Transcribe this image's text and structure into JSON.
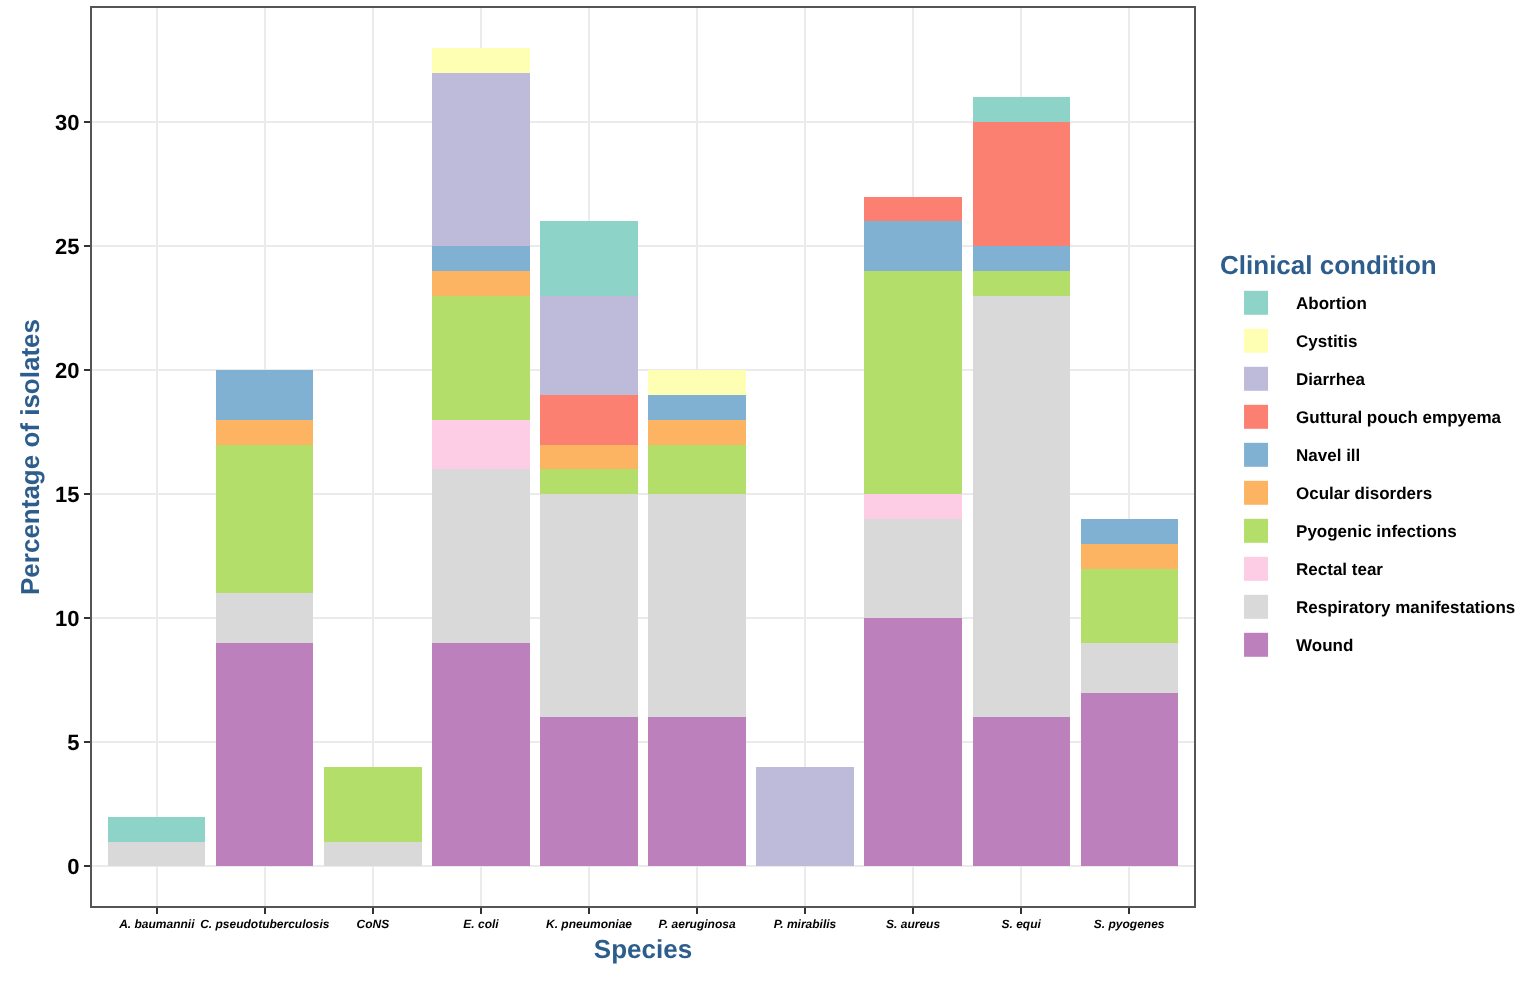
{
  "chart_data": {
    "type": "bar",
    "stacked": true,
    "xlabel": "Species",
    "ylabel": "Percentage of isolates",
    "legend_title": "Clinical condition",
    "categories": [
      "A. baumannii",
      "C. pseudotuberculosis",
      "CoNS",
      "E. coli",
      "K. pneumoniae",
      "P. aeruginosa",
      "P. mirabilis",
      "S. aureus",
      "S. equi",
      "S. pyogenes"
    ],
    "ylim": [
      -1.6,
      34.6
    ],
    "yticks": [
      0,
      5,
      10,
      15,
      20,
      25,
      30
    ],
    "grid": true,
    "legend": "right",
    "series": [
      {
        "name": "Wound",
        "color": "#bc80bd",
        "values": [
          0,
          9,
          0,
          9,
          6,
          6,
          0,
          10,
          6,
          7
        ]
      },
      {
        "name": "Respiratory manifestations",
        "color": "#d9d9d9",
        "values": [
          1,
          2,
          1,
          7,
          9,
          9,
          0,
          4,
          17,
          2
        ]
      },
      {
        "name": "Rectal tear",
        "color": "#fccde5",
        "values": [
          0,
          0,
          0,
          2,
          0,
          0,
          0,
          1,
          0,
          0
        ]
      },
      {
        "name": "Pyogenic infections",
        "color": "#b3de69",
        "values": [
          0,
          6,
          3,
          5,
          1,
          2,
          0,
          9,
          1,
          3
        ]
      },
      {
        "name": "Ocular disorders",
        "color": "#fdb462",
        "values": [
          0,
          1,
          0,
          1,
          1,
          1,
          0,
          0,
          0,
          1
        ]
      },
      {
        "name": "Navel ill",
        "color": "#80b1d3",
        "values": [
          0,
          2,
          0,
          1,
          0,
          1,
          0,
          2,
          1,
          1
        ]
      },
      {
        "name": "Guttural pouch empyema",
        "color": "#fb8072",
        "values": [
          0,
          0,
          0,
          0,
          2,
          0,
          0,
          1,
          5,
          0
        ]
      },
      {
        "name": "Diarrhea",
        "color": "#bebada",
        "values": [
          0,
          0,
          0,
          7,
          4,
          0,
          4,
          0,
          0,
          0
        ]
      },
      {
        "name": "Cystitis",
        "color": "#ffffb3",
        "values": [
          0,
          0,
          0,
          1,
          0,
          1,
          0,
          0,
          0,
          0
        ]
      },
      {
        "name": "Abortion",
        "color": "#8dd3c7",
        "values": [
          1,
          0,
          0,
          0,
          3,
          0,
          0,
          0,
          1,
          0
        ]
      }
    ]
  }
}
